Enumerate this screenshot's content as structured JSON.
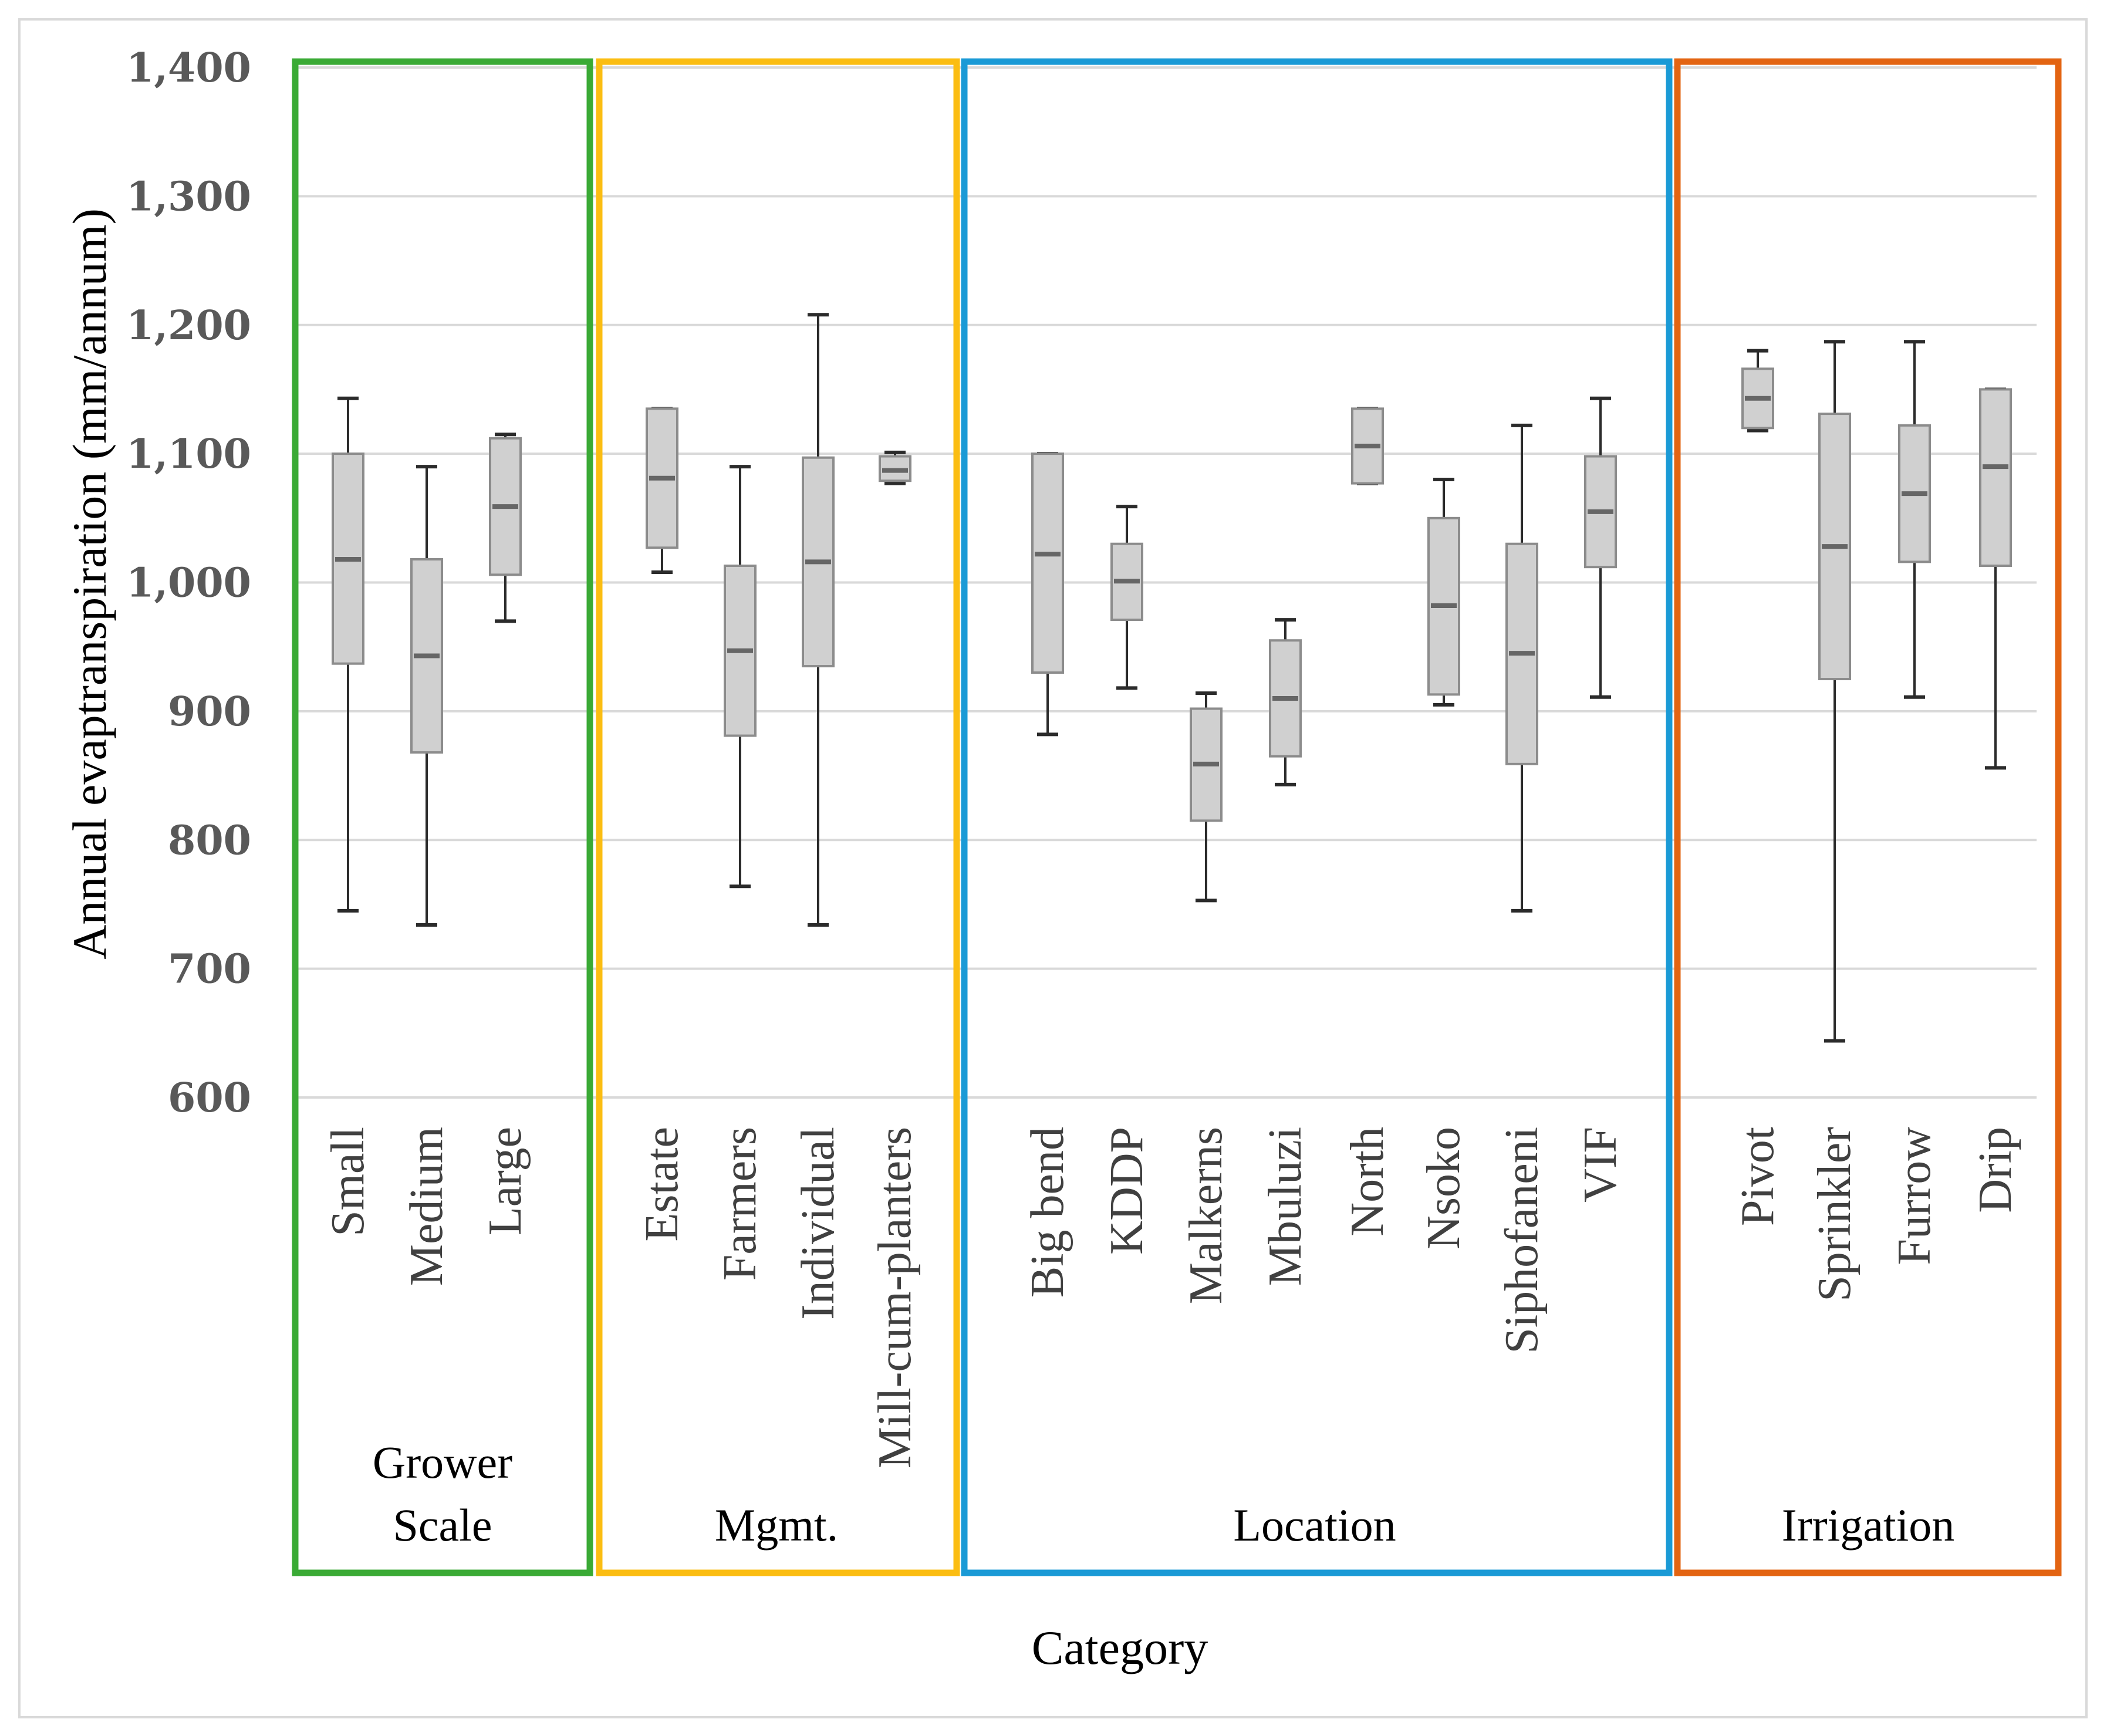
{
  "chart_data": {
    "type": "box",
    "ylabel": "Annual evaptranspiration (mm/annum)",
    "xlabel": "Category",
    "ylim": [
      600,
      1400
    ],
    "yticks": [
      "600",
      "700",
      "800",
      "900",
      "1,000",
      "1,100",
      "1,200",
      "1,300",
      "1,400"
    ],
    "groups": [
      {
        "name": "Grower Scale",
        "name_lines": [
          "Grower",
          "Scale"
        ],
        "border_color": "#3aaa35",
        "categories": [
          {
            "label": "Small",
            "min": 745,
            "q1": 937,
            "median": 1018,
            "q3": 1100,
            "max": 1143
          },
          {
            "label": "Medium",
            "min": 734,
            "q1": 868,
            "median": 943,
            "q3": 1018,
            "max": 1090
          },
          {
            "label": "Large",
            "min": 970,
            "q1": 1006,
            "median": 1059,
            "q3": 1112,
            "max": 1115
          }
        ]
      },
      {
        "name": "Mgmt.",
        "name_lines": [
          "Mgmt."
        ],
        "border_color": "#fbbd12",
        "categories": [
          {
            "label": "Estate",
            "min": 1008,
            "q1": 1027,
            "median": 1081,
            "q3": 1135,
            "max": 1135
          },
          {
            "label": "Farmers",
            "min": 764,
            "q1": 881,
            "median": 947,
            "q3": 1013,
            "max": 1090
          },
          {
            "label": "Individual",
            "min": 734,
            "q1": 935,
            "median": 1016,
            "q3": 1097,
            "max": 1208
          },
          {
            "label": "Mill-cum-planters",
            "min": 1077,
            "q1": 1079,
            "median": 1087,
            "q3": 1098,
            "max": 1101
          }
        ]
      },
      {
        "name": "Location",
        "name_lines": [
          "Location"
        ],
        "border_color": "#1a9ad6",
        "categories": [
          {
            "label": "Big bend",
            "min": 882,
            "q1": 930,
            "median": 1022,
            "q3": 1100,
            "max": 1100
          },
          {
            "label": "KDDP",
            "min": 918,
            "q1": 971,
            "median": 1001,
            "q3": 1030,
            "max": 1059
          },
          {
            "label": "Malkerns",
            "min": 753,
            "q1": 815,
            "median": 859,
            "q3": 902,
            "max": 914
          },
          {
            "label": "Mbuluzi",
            "min": 843,
            "q1": 865,
            "median": 910,
            "q3": 955,
            "max": 971
          },
          {
            "label": "North",
            "min": 1077,
            "q1": 1077,
            "median": 1106,
            "q3": 1135,
            "max": 1135
          },
          {
            "label": "Nsoko",
            "min": 905,
            "q1": 913,
            "median": 982,
            "q3": 1050,
            "max": 1080
          },
          {
            "label": "Siphofaneni",
            "min": 745,
            "q1": 859,
            "median": 945,
            "q3": 1030,
            "max": 1122
          },
          {
            "label": "VIF",
            "min": 911,
            "q1": 1012,
            "median": 1055,
            "q3": 1098,
            "max": 1143
          }
        ]
      },
      {
        "name": "Irrigation",
        "name_lines": [
          "Irrigation"
        ],
        "border_color": "#e36412",
        "categories": [
          {
            "label": "Pivot",
            "min": 1118,
            "q1": 1120,
            "median": 1143,
            "q3": 1166,
            "max": 1180
          },
          {
            "label": "Sprinkler",
            "min": 644,
            "q1": 925,
            "median": 1028,
            "q3": 1131,
            "max": 1187
          },
          {
            "label": "Furrow",
            "min": 911,
            "q1": 1016,
            "median": 1069,
            "q3": 1122,
            "max": 1187
          },
          {
            "label": "Drip",
            "min": 856,
            "q1": 1013,
            "median": 1090,
            "q3": 1150,
            "max": 1150
          }
        ]
      }
    ],
    "colors": {
      "box_fill": "#d0d0d0",
      "box_stroke": "#8c8c8c",
      "whisker": "#2b2b2b",
      "median": "#666666",
      "grid": "#d9d9d9",
      "frame": "#d9d9d9"
    }
  }
}
